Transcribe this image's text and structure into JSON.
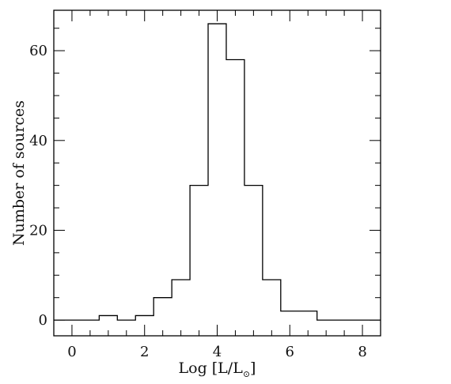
{
  "chart_data": {
    "type": "bar",
    "style": "step-histogram",
    "xlabel": "Log [L/L",
    "xlabel_sub": "⊙",
    "xlabel_close": "]",
    "ylabel": "Number of sources",
    "xlim": [
      -0.5,
      8.5
    ],
    "ylim": [
      -3.5,
      69
    ],
    "xticks": [
      0,
      2,
      4,
      6,
      8
    ],
    "yticks": [
      0,
      20,
      40,
      60
    ],
    "bin_width": 0.5,
    "bins": [
      {
        "center": -0.25,
        "value": 0
      },
      {
        "center": 0.25,
        "value": 0
      },
      {
        "center": 0.75,
        "value": 0
      },
      {
        "center": 1.0,
        "value": 1
      },
      {
        "center": 1.5,
        "value": 0
      },
      {
        "center": 2.0,
        "value": 1
      },
      {
        "center": 2.5,
        "value": 5
      },
      {
        "center": 3.0,
        "value": 9
      },
      {
        "center": 3.5,
        "value": 30
      },
      {
        "center": 4.0,
        "value": 66
      },
      {
        "center": 4.5,
        "value": 58
      },
      {
        "center": 5.0,
        "value": 30
      },
      {
        "center": 5.5,
        "value": 9
      },
      {
        "center": 6.0,
        "value": 2
      },
      {
        "center": 6.5,
        "value": 2
      },
      {
        "center": 7.0,
        "value": 0
      },
      {
        "center": 7.5,
        "value": 0
      },
      {
        "center": 8.0,
        "value": 0
      }
    ],
    "step_edges": [
      -0.5,
      0.75,
      1.25,
      1.75,
      2.25,
      2.75,
      3.25,
      3.75,
      4.25,
      4.75,
      5.25,
      5.75,
      6.75,
      8.5
    ],
    "step_values": [
      0,
      1,
      0,
      1,
      5,
      9,
      30,
      66,
      58,
      30,
      9,
      2,
      0
    ],
    "grid": false,
    "legend": "none"
  }
}
